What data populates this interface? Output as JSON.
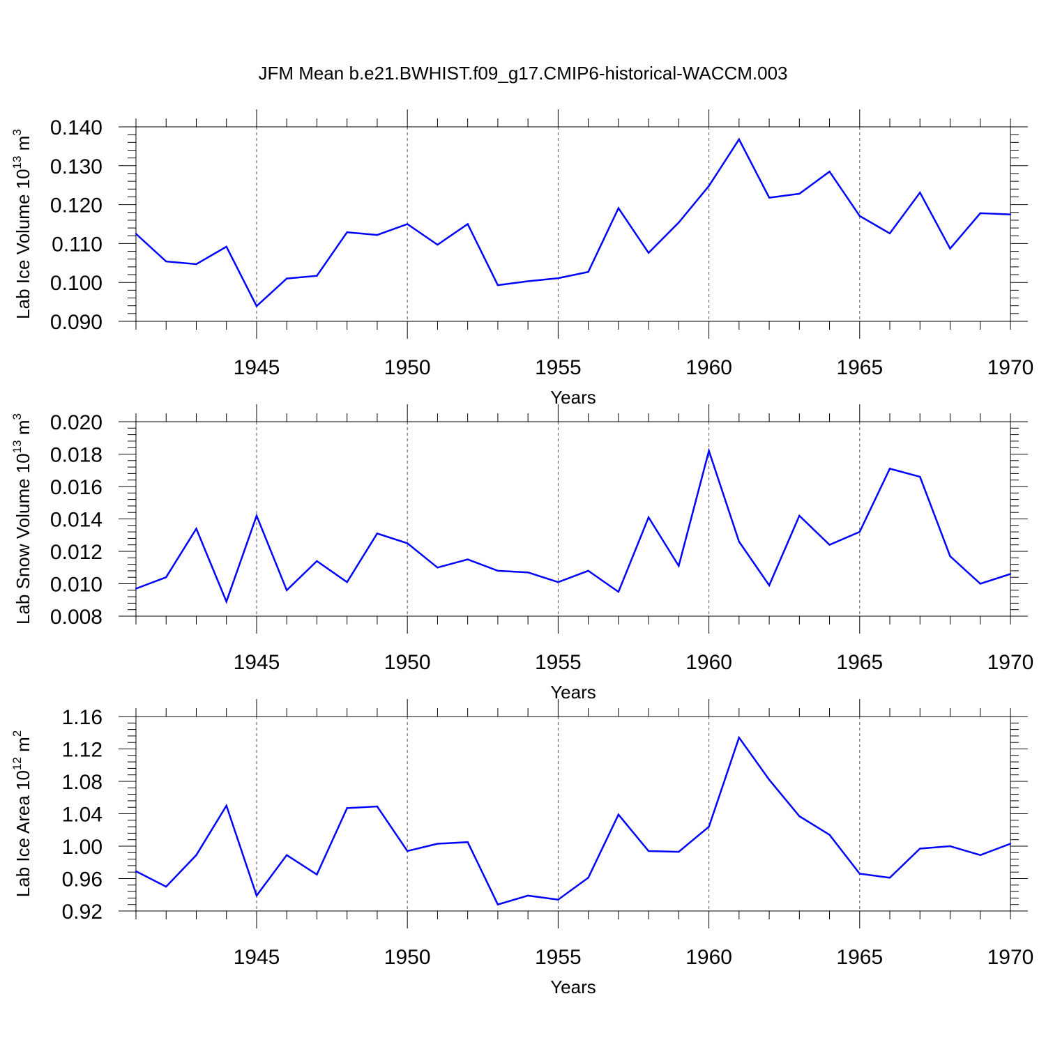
{
  "figure_title": "JFM Mean b.e21.BWHIST.f09_g17.CMIP6-historical-WACCM.003",
  "chart_data": [
    {
      "type": "line",
      "title": "",
      "ylabel": "Lab Ice Volume",
      "yunit_base": "10",
      "yunit_exp": "13",
      "yunit_sym": "m",
      "yunit_sym_exp": "3",
      "xlabel": "Years",
      "xlim": [
        1941,
        1970
      ],
      "ylim": [
        0.09,
        0.14
      ],
      "yticks": [
        0.09,
        0.1,
        0.11,
        0.12,
        0.13,
        0.14
      ],
      "ytick_labels": [
        "0.090",
        "0.100",
        "0.110",
        "0.120",
        "0.130",
        "0.140"
      ],
      "xticks": [
        1945,
        1950,
        1955,
        1960,
        1965,
        1970
      ],
      "xtick_labels": [
        "1945",
        "1950",
        "1955",
        "1960",
        "1965",
        "1970"
      ],
      "grid": "dashed vertical at major x ticks",
      "series": [
        {
          "name": "Lab Ice Volume",
          "color": "#0000ff",
          "x": [
            1941,
            1942,
            1943,
            1944,
            1945,
            1946,
            1947,
            1948,
            1949,
            1950,
            1951,
            1952,
            1953,
            1954,
            1955,
            1956,
            1957,
            1958,
            1959,
            1960,
            1961,
            1962,
            1963,
            1964,
            1965,
            1966,
            1967,
            1968,
            1969,
            1970
          ],
          "values": [
            0.1125,
            0.1054,
            0.1047,
            0.1092,
            0.0939,
            0.101,
            0.1017,
            0.1129,
            0.1122,
            0.115,
            0.1097,
            0.115,
            0.0993,
            0.1003,
            0.1011,
            0.1027,
            0.1191,
            0.1076,
            0.1154,
            0.1248,
            0.1368,
            0.1218,
            0.1228,
            0.1285,
            0.1171,
            0.1126,
            0.1231,
            0.1087,
            0.1178,
            0.1175
          ]
        }
      ]
    },
    {
      "type": "line",
      "title": "",
      "ylabel": "Lab Snow Volume",
      "yunit_base": "10",
      "yunit_exp": "13",
      "yunit_sym": "m",
      "yunit_sym_exp": "3",
      "xlabel": "Years",
      "xlim": [
        1941,
        1970
      ],
      "ylim": [
        0.008,
        0.02
      ],
      "yticks": [
        0.008,
        0.01,
        0.012,
        0.014,
        0.016,
        0.018,
        0.02
      ],
      "ytick_labels": [
        "0.008",
        "0.010",
        "0.012",
        "0.014",
        "0.016",
        "0.018",
        "0.020"
      ],
      "xticks": [
        1945,
        1950,
        1955,
        1960,
        1965,
        1970
      ],
      "xtick_labels": [
        "1945",
        "1950",
        "1955",
        "1960",
        "1965",
        "1970"
      ],
      "grid": "dashed vertical at major x ticks",
      "series": [
        {
          "name": "Lab Snow Volume",
          "color": "#0000ff",
          "x": [
            1941,
            1942,
            1943,
            1944,
            1945,
            1946,
            1947,
            1948,
            1949,
            1950,
            1951,
            1952,
            1953,
            1954,
            1955,
            1956,
            1957,
            1958,
            1959,
            1960,
            1961,
            1962,
            1963,
            1964,
            1965,
            1966,
            1967,
            1968,
            1969,
            1970
          ],
          "values": [
            0.0097,
            0.0104,
            0.0134,
            0.0089,
            0.0142,
            0.0096,
            0.0114,
            0.0101,
            0.0131,
            0.0125,
            0.011,
            0.0115,
            0.0108,
            0.0107,
            0.0101,
            0.0108,
            0.0095,
            0.0141,
            0.0111,
            0.0182,
            0.0126,
            0.0099,
            0.0142,
            0.0124,
            0.0132,
            0.0171,
            0.0166,
            0.0117,
            0.01,
            0.0106
          ]
        }
      ]
    },
    {
      "type": "line",
      "title": "",
      "ylabel": "Lab Ice Area",
      "yunit_base": "10",
      "yunit_exp": "12",
      "yunit_sym": "m",
      "yunit_sym_exp": "2",
      "xlabel": "Years",
      "xlim": [
        1941,
        1970
      ],
      "ylim": [
        0.92,
        1.16
      ],
      "yticks": [
        0.92,
        0.96,
        1.0,
        1.04,
        1.08,
        1.12,
        1.16
      ],
      "ytick_labels": [
        "0.92",
        "0.96",
        "1.00",
        "1.04",
        "1.08",
        "1.12",
        "1.16"
      ],
      "xticks": [
        1945,
        1950,
        1955,
        1960,
        1965,
        1970
      ],
      "xtick_labels": [
        "1945",
        "1950",
        "1955",
        "1960",
        "1965",
        "1970"
      ],
      "grid": "dashed vertical at major x ticks",
      "series": [
        {
          "name": "Lab Ice Area",
          "color": "#0000ff",
          "x": [
            1941,
            1942,
            1943,
            1944,
            1945,
            1946,
            1947,
            1948,
            1949,
            1950,
            1951,
            1952,
            1953,
            1954,
            1955,
            1956,
            1957,
            1958,
            1959,
            1960,
            1961,
            1962,
            1963,
            1964,
            1965,
            1966,
            1967,
            1968,
            1969,
            1970
          ],
          "values": [
            0.969,
            0.95,
            0.989,
            1.05,
            0.939,
            0.989,
            0.965,
            1.047,
            1.049,
            0.994,
            1.003,
            1.005,
            0.928,
            0.939,
            0.934,
            0.961,
            1.039,
            0.994,
            0.993,
            1.024,
            1.134,
            1.082,
            1.037,
            1.014,
            0.966,
            0.961,
            0.997,
            1.0,
            0.989,
            1.003
          ]
        }
      ]
    }
  ]
}
